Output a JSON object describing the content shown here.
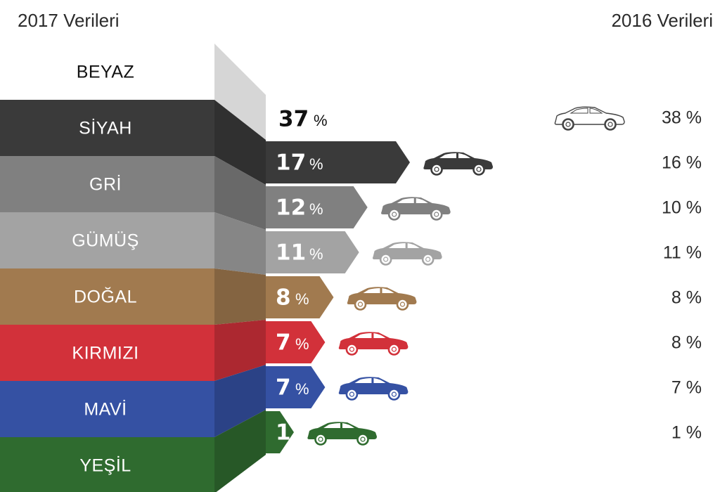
{
  "headers": {
    "left": "2017 Verileri",
    "right": "2016 Verileri"
  },
  "chart_data": {
    "type": "bar",
    "categories": [
      "BEYAZ",
      "SİYAH",
      "GRİ",
      "GÜMÜŞ",
      "DOĞAL",
      "KIRMIZI",
      "MAVİ",
      "YEŞİL"
    ],
    "series": [
      {
        "name": "2017 Verileri",
        "values": [
          37,
          17,
          12,
          11,
          8,
          7,
          7,
          1
        ]
      },
      {
        "name": "2016 Verileri",
        "values": [
          38,
          16,
          10,
          11,
          8,
          8,
          7,
          1
        ]
      }
    ],
    "labels_2017": [
      "37",
      "17",
      "12",
      "11",
      "8",
      "7",
      "7",
      "1"
    ],
    "labels_2016": [
      "38 %",
      "16 %",
      "10 %",
      "11 %",
      "8 %",
      "8 %",
      "7 %",
      "1 %"
    ],
    "percent_sign": "%",
    "colors": [
      "#ffffff",
      "#3a3a3a",
      "#808080",
      "#a3a3a3",
      "#a17a4f",
      "#d2313a",
      "#3551a3",
      "#2f6b2f"
    ],
    "icons": [
      "car-icon",
      "car-icon",
      "car-icon",
      "car-icon",
      "car-icon",
      "car-icon",
      "car-icon",
      "car-icon"
    ]
  }
}
